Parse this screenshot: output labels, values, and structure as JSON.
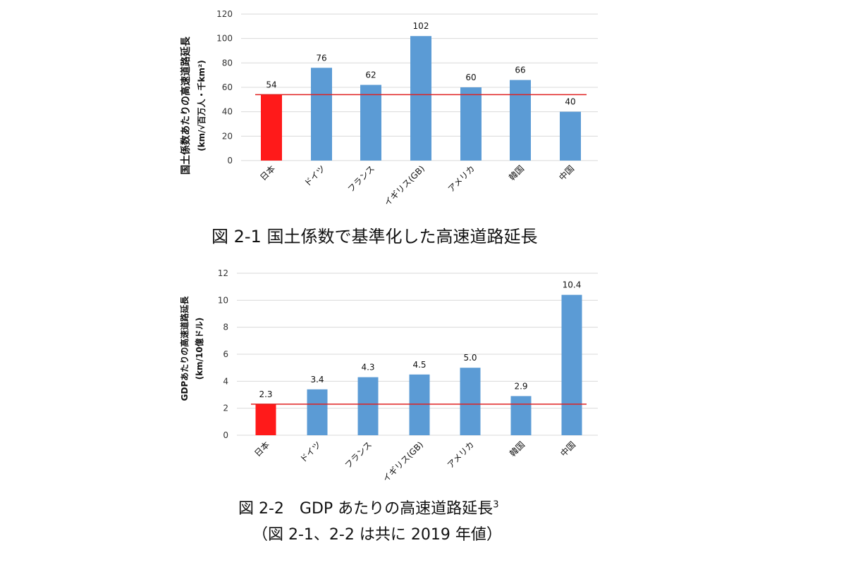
{
  "chart_data": [
    {
      "type": "bar",
      "categories": [
        "日本",
        "ドイツ",
        "フランス",
        "イギリス(GB)",
        "アメリカ",
        "韓国",
        "中国"
      ],
      "values": [
        54,
        76,
        62,
        102,
        60,
        66,
        40
      ],
      "data_labels": [
        "54",
        "76",
        "62",
        "102",
        "60",
        "66",
        "40"
      ],
      "yticks": [
        "0",
        "20",
        "40",
        "60",
        "80",
        "100",
        "120"
      ],
      "ylim": [
        0,
        120
      ],
      "ylabel_line1": "国土係数あたりの高速道路延長",
      "ylabel_line2": "(km/√百万人・千km²)",
      "reference_value": 54,
      "highlight_index": 0,
      "colors": {
        "highlight": "#ff1a1a",
        "bar": "#5b9bd5",
        "reference_line": "#e02020",
        "grid": "#d9d9d9"
      }
    },
    {
      "type": "bar",
      "categories": [
        "日本",
        "ドイツ",
        "フランス",
        "イギリス(GB)",
        "アメリカ",
        "韓国",
        "中国"
      ],
      "values": [
        2.3,
        3.4,
        4.3,
        4.5,
        5.0,
        2.9,
        10.4
      ],
      "data_labels": [
        "2.3",
        "3.4",
        "4.3",
        "4.5",
        "5.0",
        "2.9",
        "10.4"
      ],
      "yticks": [
        "0",
        "2",
        "4",
        "6",
        "8",
        "10",
        "12"
      ],
      "ylim": [
        0,
        12
      ],
      "ylabel_line1": "GDPあたりの高速道路延長",
      "ylabel_line2": "(km/10億ドル)",
      "reference_value": 2.3,
      "highlight_index": 0,
      "colors": {
        "highlight": "#ff1a1a",
        "bar": "#5b9bd5",
        "reference_line": "#e02020",
        "grid": "#d9d9d9"
      }
    }
  ],
  "captions": {
    "fig1": "図 2-1  国土係数で基準化した高速道路延長",
    "fig2_main": "図 2-2　GDP あたりの高速道路延長",
    "fig2_sup": "3",
    "note": "（図 2-1、2-2 は共に 2019 年値）"
  }
}
